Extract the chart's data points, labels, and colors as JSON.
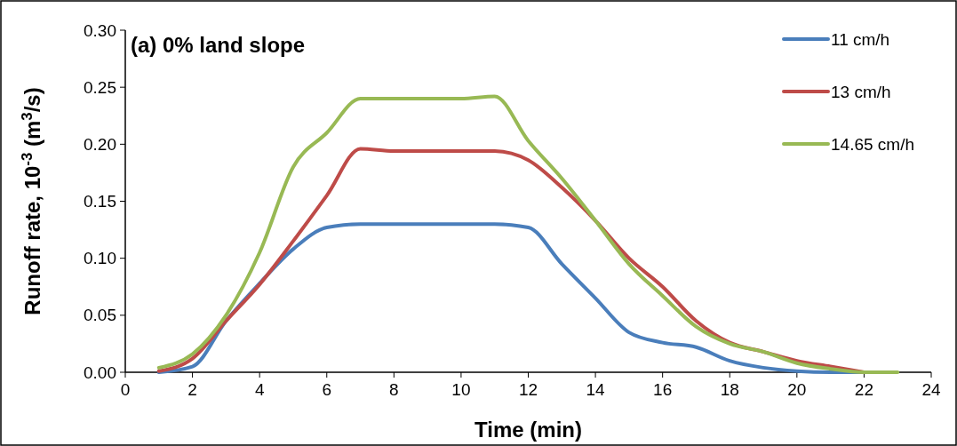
{
  "chart_data": {
    "type": "line",
    "xlabel": "Time (min)",
    "ylabel": "Runoff rate, 10$^{-3}$ (m$^{3}$/s)",
    "annotations": [
      "(a) 0% land slope"
    ],
    "x": [
      1,
      2,
      3,
      4,
      5,
      6,
      7,
      8,
      9,
      10,
      11,
      12,
      13,
      14,
      15,
      16,
      17,
      18,
      19,
      20,
      21,
      22,
      23
    ],
    "xlim": [
      0,
      24
    ],
    "xticks": [
      0,
      2,
      4,
      6,
      8,
      10,
      12,
      14,
      16,
      18,
      20,
      22,
      24
    ],
    "ylim": [
      0,
      0.3
    ],
    "yticks": [
      {
        "value": 0,
        "label": "0.00"
      },
      {
        "value": 0.05,
        "label": "0.05"
      },
      {
        "value": 0.1,
        "label": "0.10"
      },
      {
        "value": 0.15,
        "label": "0.15"
      },
      {
        "value": 0.2,
        "label": "0.20"
      },
      {
        "value": 0.25,
        "label": "0.25"
      },
      {
        "value": 0.3,
        "label": "0.30"
      }
    ],
    "grid": false,
    "legend": "top right",
    "marker": "none",
    "line_style": "solid",
    "series": [
      {
        "name": "11 cm/h",
        "color": "#4a7ebb",
        "values": [
          0,
          0.005,
          0.045,
          0.078,
          0.108,
          0.127,
          0.13,
          0.13,
          0.13,
          0.13,
          0.13,
          0.127,
          0.095,
          0.065,
          0.035,
          0.026,
          0.022,
          0.01,
          0.004,
          0.001,
          0,
          0,
          null
        ]
      },
      {
        "name": "13 cm/h",
        "color": "#be4b48",
        "values": [
          0.001,
          0.012,
          0.045,
          0.077,
          0.115,
          0.155,
          0.196,
          0.194,
          0.194,
          0.194,
          0.194,
          0.186,
          0.162,
          0.133,
          0.1,
          0.075,
          0.045,
          0.026,
          0.018,
          0.01,
          0.005,
          0,
          null
        ]
      },
      {
        "name": "14.65 cm/h",
        "color": "#98b954",
        "values": [
          0.004,
          0.016,
          0.05,
          0.105,
          0.18,
          0.21,
          0.24,
          0.24,
          0.24,
          0.24,
          0.242,
          0.203,
          0.17,
          0.133,
          0.095,
          0.067,
          0.04,
          0.025,
          0.018,
          0.008,
          0.003,
          0,
          0
        ]
      }
    ]
  }
}
